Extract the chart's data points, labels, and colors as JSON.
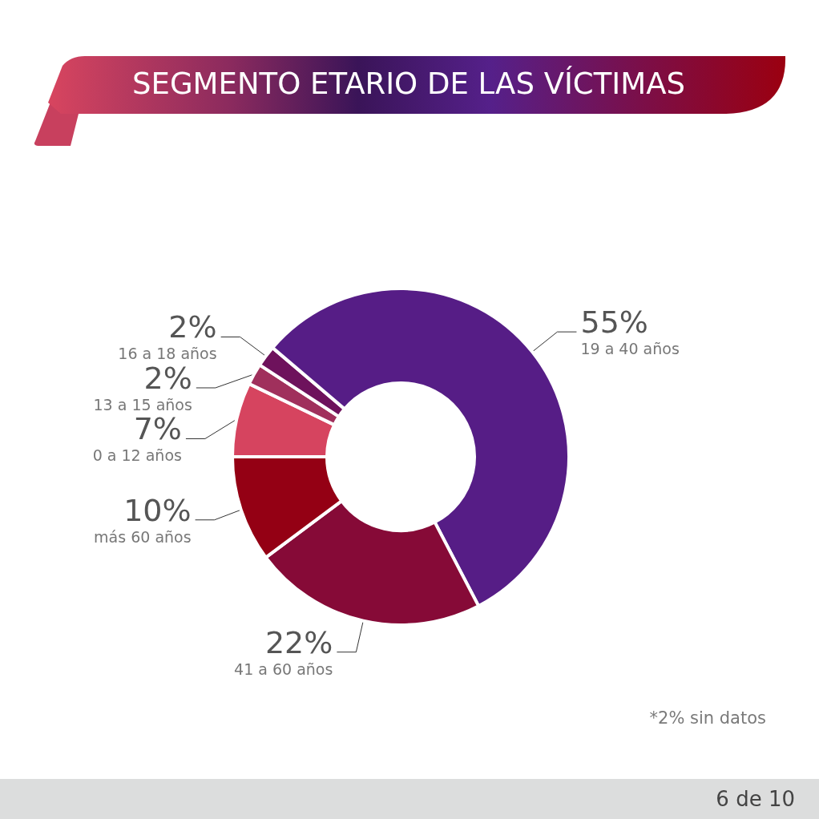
{
  "chart_data": {
    "type": "donut",
    "title": "SEGMENTO ETARIO DE LAS VÍCTIMAS",
    "categories": [
      "0 a 12 años",
      "13 a 15 años",
      "16 a 18 años",
      "19 a 40 años",
      "41 a 60 años",
      "más 60 años"
    ],
    "values": [
      7,
      2,
      2,
      55,
      22,
      10
    ],
    "value_labels": [
      "7%",
      "2%",
      "2%",
      "55%",
      "22%",
      "10%"
    ],
    "colors": [
      "#d6445f",
      "#a0305c",
      "#6e125c",
      "#561d86",
      "#860a37",
      "#940014"
    ],
    "annotations": [
      "*2% sin datos",
      "6 de 10"
    ]
  }
}
